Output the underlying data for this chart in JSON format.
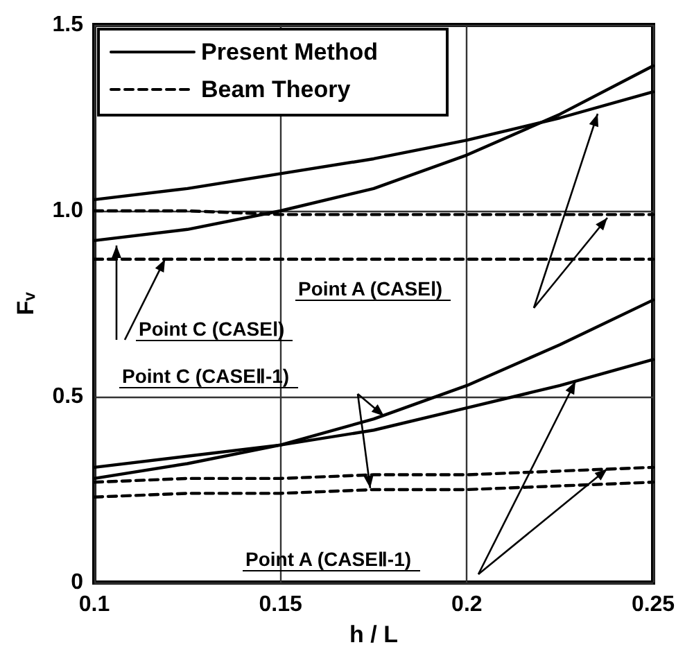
{
  "chart_data": {
    "type": "line",
    "xlabel": "h / L",
    "ylabel": "Fᵥ",
    "x": [
      0.1,
      0.125,
      0.15,
      0.175,
      0.2,
      0.225,
      0.25
    ],
    "series": [
      {
        "name": "Present Method",
        "color": "#000000",
        "line_style": "solid",
        "values": [
          1.03,
          1.06,
          1.1,
          1.14,
          1.19,
          1.25,
          1.32
        ]
      },
      {
        "color": "#000000",
        "line_style": "solid",
        "values": [
          0.92,
          0.95,
          1.0,
          1.06,
          1.15,
          1.26,
          1.39
        ]
      },
      {
        "name": "Beam Theory",
        "color": "#000000",
        "line_style": "dashed",
        "values": [
          1.0,
          1.0,
          0.99,
          0.99,
          0.99,
          0.99,
          0.99
        ]
      },
      {
        "color": "#000000",
        "line_style": "dashed",
        "values": [
          0.87,
          0.87,
          0.87,
          0.87,
          0.87,
          0.87,
          0.87
        ]
      },
      {
        "color": "#000000",
        "line_style": "solid",
        "values": [
          0.31,
          0.34,
          0.37,
          0.41,
          0.47,
          0.53,
          0.6
        ]
      },
      {
        "color": "#000000",
        "line_style": "solid",
        "values": [
          0.28,
          0.32,
          0.37,
          0.44,
          0.53,
          0.64,
          0.76
        ]
      },
      {
        "color": "#000000",
        "line_style": "dashed",
        "values": [
          0.27,
          0.28,
          0.28,
          0.29,
          0.29,
          0.3,
          0.31
        ]
      },
      {
        "color": "#000000",
        "line_style": "dashed",
        "values": [
          0.23,
          0.24,
          0.24,
          0.25,
          0.25,
          0.26,
          0.27
        ]
      }
    ],
    "xlim": [
      0.1,
      0.25
    ],
    "xticks": [
      0.1,
      0.15,
      0.2,
      0.25
    ],
    "ylim": [
      0,
      1.5
    ],
    "yticks": [
      0,
      0.5,
      {
        "value": 1,
        "label": "1.0"
      },
      1.5
    ],
    "grid": true,
    "legend": "top left",
    "marker": "none",
    "annotations": [
      "Point A (CASEⅠ)",
      {
        "text": "Point C (CASEⅠ)",
        "x": 0.119,
        "y": 0.87
      },
      "Point C (CASEⅡ-1)",
      "Point A (CASEⅡ-1)"
    ]
  }
}
